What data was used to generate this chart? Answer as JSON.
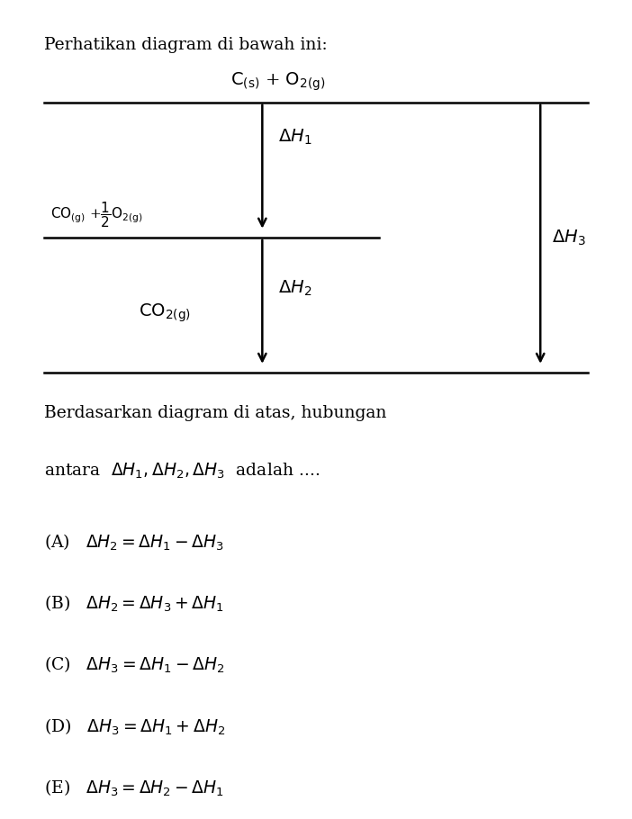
{
  "background_color": "#ffffff",
  "text_color": "#000000",
  "fig_width": 7.02,
  "fig_height": 9.1,
  "dpi": 100,
  "title_text": "Perhatikan diagram di bawah ini:",
  "question_line1": "Berdasarkan diagram di atas, hubungan",
  "question_line2": "antara  $\\Delta H_1, \\Delta H_2, \\Delta H_3$  adalah ....",
  "choices": [
    "(A)   $\\Delta H_2 = \\Delta H_1 - \\Delta H_3$",
    "(B)   $\\Delta H_2 = \\Delta H_3 + \\Delta H_1$",
    "(C)   $\\Delta H_3 = \\Delta H_1 - \\Delta H_2$",
    "(D)   $\\Delta H_3 = \\Delta H_1 + \\Delta H_2$",
    "(E)   $\\Delta H_3 = \\Delta H_2 - \\Delta H_1$"
  ]
}
